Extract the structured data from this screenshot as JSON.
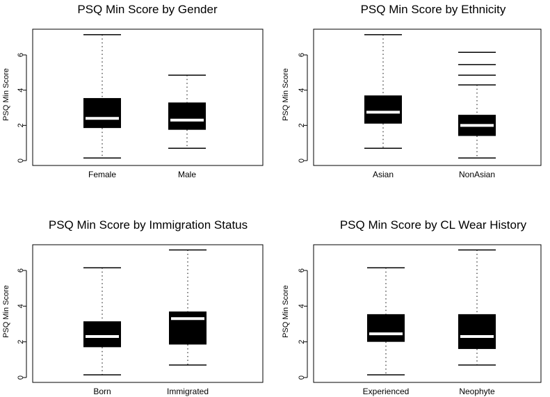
{
  "chart_data": [
    {
      "type": "boxplot",
      "title": "PSQ Min Score by Gender",
      "ylabel": "PSQ Min Score",
      "ylim": [
        0,
        7.3
      ],
      "yticks": [
        0,
        2,
        4,
        6
      ],
      "categories": [
        "Female",
        "Male"
      ],
      "boxes": [
        {
          "category": "Female",
          "whisker_low": 0.15,
          "q1": 1.85,
          "median": 2.4,
          "q3": 3.55,
          "whisker_high": 7.15,
          "outliers": []
        },
        {
          "category": "Male",
          "whisker_low": 0.7,
          "q1": 1.75,
          "median": 2.3,
          "q3": 3.3,
          "whisker_high": 4.85,
          "outliers": []
        }
      ]
    },
    {
      "type": "boxplot",
      "title": "PSQ Min Score by Ethnicity",
      "ylabel": "PSQ Min Score",
      "ylim": [
        0,
        7.3
      ],
      "yticks": [
        0,
        2,
        4,
        6
      ],
      "categories": [
        "Asian",
        "NonAsian"
      ],
      "boxes": [
        {
          "category": "Asian",
          "whisker_low": 0.7,
          "q1": 2.1,
          "median": 2.75,
          "q3": 3.7,
          "whisker_high": 7.15,
          "outliers": []
        },
        {
          "category": "NonAsian",
          "whisker_low": 0.15,
          "q1": 1.4,
          "median": 2.0,
          "q3": 2.6,
          "whisker_high": 4.3,
          "outliers": [
            4.85,
            5.45,
            6.15
          ]
        }
      ]
    },
    {
      "type": "boxplot",
      "title": "PSQ Min Score by Immigration Status",
      "ylabel": "PSQ Min Score",
      "ylim": [
        0,
        7.3
      ],
      "yticks": [
        0,
        2,
        4,
        6
      ],
      "categories": [
        "Born",
        "Immigrated"
      ],
      "boxes": [
        {
          "category": "Born",
          "whisker_low": 0.15,
          "q1": 1.7,
          "median": 2.3,
          "q3": 3.15,
          "whisker_high": 6.15,
          "outliers": []
        },
        {
          "category": "Immigrated",
          "whisker_low": 0.7,
          "q1": 1.85,
          "median": 3.3,
          "q3": 3.7,
          "whisker_high": 7.15,
          "outliers": []
        }
      ]
    },
    {
      "type": "boxplot",
      "title": "PSQ Min Score by CL Wear History",
      "ylabel": "PSQ Min Score",
      "ylim": [
        0,
        7.3
      ],
      "yticks": [
        0,
        2,
        4,
        6
      ],
      "categories": [
        "Experienced",
        "Neophyte"
      ],
      "boxes": [
        {
          "category": "Experienced",
          "whisker_low": 0.15,
          "q1": 2.0,
          "median": 2.45,
          "q3": 3.55,
          "whisker_high": 6.15,
          "outliers": []
        },
        {
          "category": "Neophyte",
          "whisker_low": 0.7,
          "q1": 1.6,
          "median": 2.3,
          "q3": 3.55,
          "whisker_high": 7.15,
          "outliers": []
        }
      ]
    }
  ]
}
